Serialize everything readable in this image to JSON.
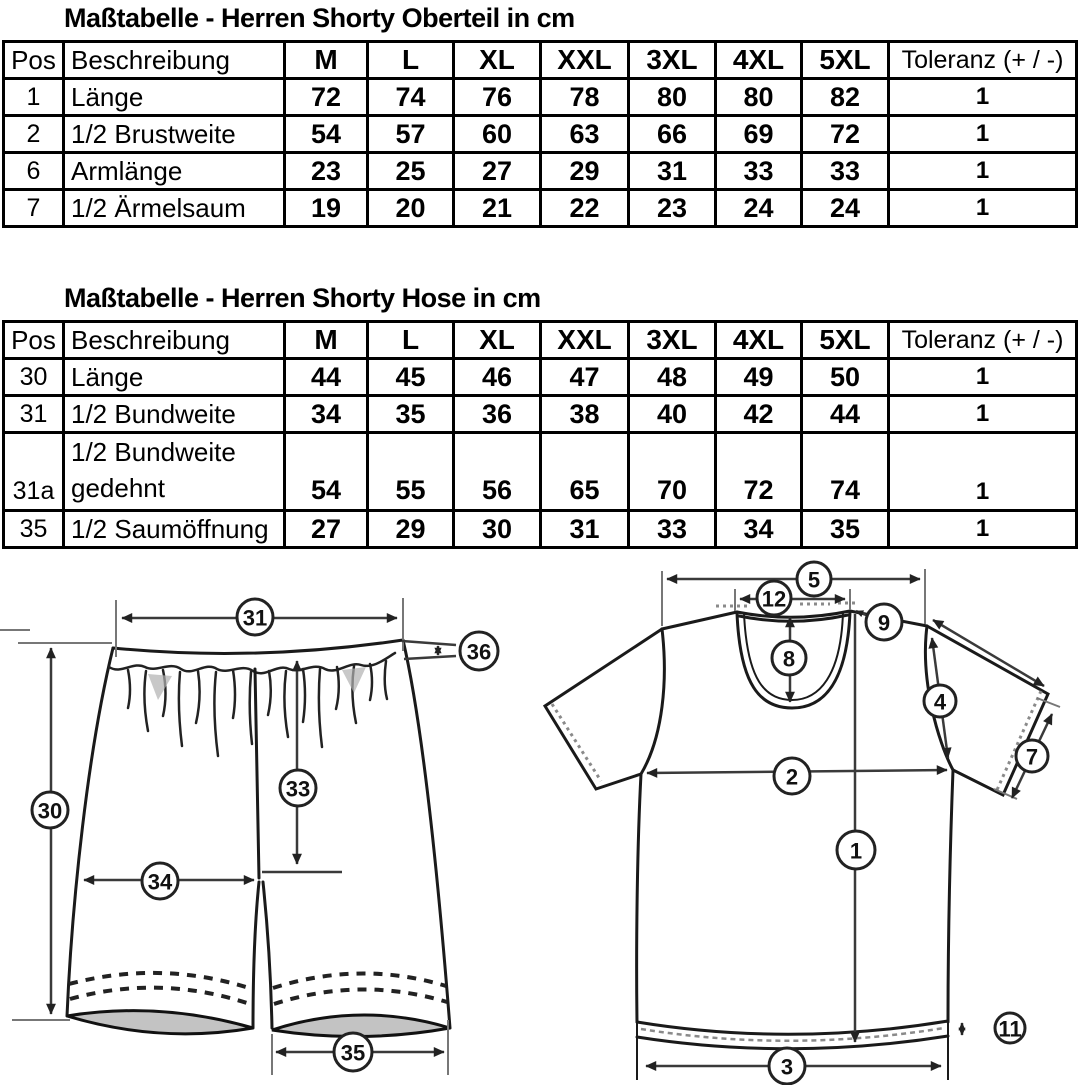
{
  "page": {
    "background": "#ffffff",
    "line_color": "#1a1a1a",
    "hem_fill": "#c3c3c3"
  },
  "tables": [
    {
      "title": "Maßtabelle - Herren Shorty Oberteil in cm",
      "headers": [
        "Pos",
        "Beschreibung",
        "M",
        "L",
        "XL",
        "XXL",
        "3XL",
        "4XL",
        "5XL",
        "Toleranz (+ / -)"
      ],
      "rows": [
        {
          "pos": "1",
          "lines": [
            "Länge"
          ],
          "values": [
            "72",
            "74",
            "76",
            "78",
            "80",
            "80",
            "82"
          ],
          "toleranz": "1"
        },
        {
          "pos": "2",
          "lines": [
            "1/2 Brustweite"
          ],
          "values": [
            "54",
            "57",
            "60",
            "63",
            "66",
            "69",
            "72"
          ],
          "toleranz": "1"
        },
        {
          "pos": "6",
          "lines": [
            "Armlänge"
          ],
          "values": [
            "23",
            "25",
            "27",
            "29",
            "31",
            "33",
            "33"
          ],
          "toleranz": "1"
        },
        {
          "pos": "7",
          "lines": [
            "1/2 Ärmelsaum"
          ],
          "values": [
            "19",
            "20",
            "21",
            "22",
            "23",
            "24",
            "24"
          ],
          "toleranz": "1"
        }
      ]
    },
    {
      "title": "Maßtabelle - Herren Shorty Hose in cm",
      "headers": [
        "Pos",
        "Beschreibung",
        "M",
        "L",
        "XL",
        "XXL",
        "3XL",
        "4XL",
        "5XL",
        "Toleranz (+ / -)"
      ],
      "rows": [
        {
          "pos": "30",
          "lines": [
            "Länge"
          ],
          "values": [
            "44",
            "45",
            "46",
            "47",
            "48",
            "49",
            "50"
          ],
          "toleranz": "1"
        },
        {
          "pos": "31",
          "lines": [
            "1/2 Bundweite"
          ],
          "values": [
            "34",
            "35",
            "36",
            "38",
            "40",
            "42",
            "44"
          ],
          "toleranz": "1"
        },
        {
          "pos": "31a",
          "lines": [
            "1/2 Bundweite",
            "gedehnt"
          ],
          "values": [
            "54",
            "55",
            "56",
            "65",
            "70",
            "72",
            "74"
          ],
          "toleranz": "1",
          "tall": true
        },
        {
          "pos": "35",
          "lines": [
            "1/2 Saumöffnung"
          ],
          "values": [
            "27",
            "29",
            "30",
            "31",
            "33",
            "34",
            "35"
          ],
          "toleranz": "1"
        }
      ]
    }
  ],
  "diagrams": {
    "shorts": {
      "callouts": [
        "31",
        "36",
        "30",
        "33",
        "34",
        "35"
      ]
    },
    "tshirt": {
      "callouts": [
        "5",
        "12",
        "9",
        "8",
        "4",
        "7",
        "2",
        "1",
        "11",
        "3"
      ]
    }
  }
}
